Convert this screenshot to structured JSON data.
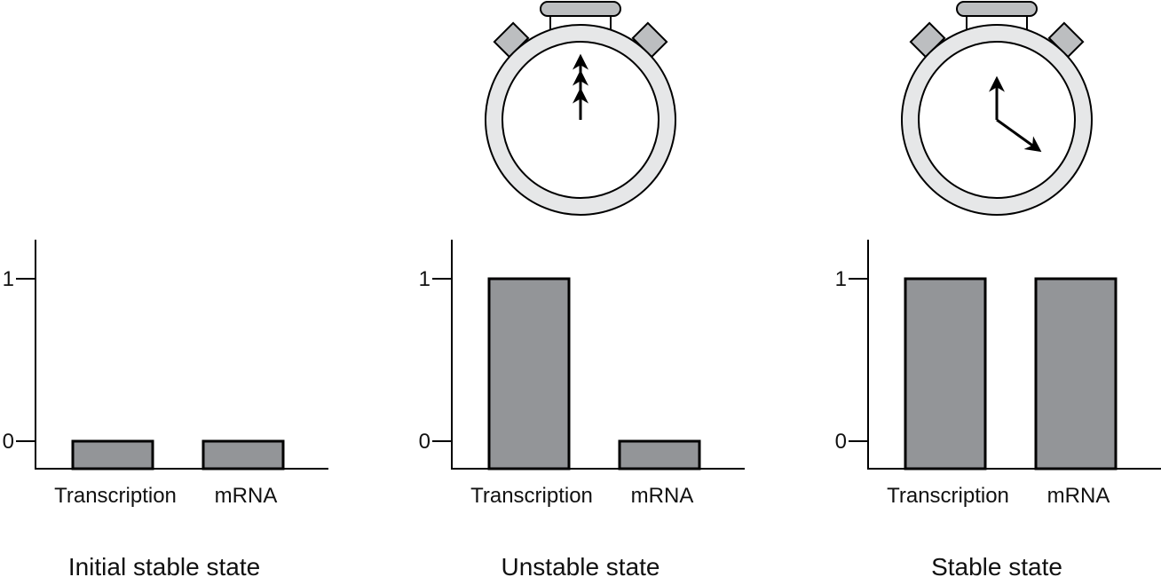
{
  "colors": {
    "bar_fill": "#939598",
    "stroke": "#000000",
    "watch_ring": "#e6e7e8",
    "watch_button": "#bcbec0"
  },
  "chart_data": [
    {
      "type": "bar",
      "title": "Initial stable state",
      "categories": [
        "Transcription",
        "mRNA"
      ],
      "values": [
        0,
        0
      ],
      "ylim": [
        0,
        1.2
      ],
      "yticks": [
        {
          "value": 0,
          "label": "0"
        },
        {
          "value": 1,
          "label": "1"
        }
      ],
      "icon": null
    },
    {
      "type": "bar",
      "title": "Unstable state",
      "categories": [
        "Transcription",
        "mRNA"
      ],
      "values": [
        1,
        0
      ],
      "ylim": [
        0,
        1.2
      ],
      "yticks": [
        {
          "value": 0,
          "label": "0"
        },
        {
          "value": 1,
          "label": "1"
        }
      ],
      "icon": "stopwatch-icon-hands-at-twelve"
    },
    {
      "type": "bar",
      "title": "Stable state",
      "categories": [
        "Transcription",
        "mRNA"
      ],
      "values": [
        1,
        1
      ],
      "ylim": [
        0,
        1.2
      ],
      "yticks": [
        {
          "value": 0,
          "label": "0"
        },
        {
          "value": 1,
          "label": "1"
        }
      ],
      "icon": "stopwatch-icon-hands-at-four"
    }
  ]
}
